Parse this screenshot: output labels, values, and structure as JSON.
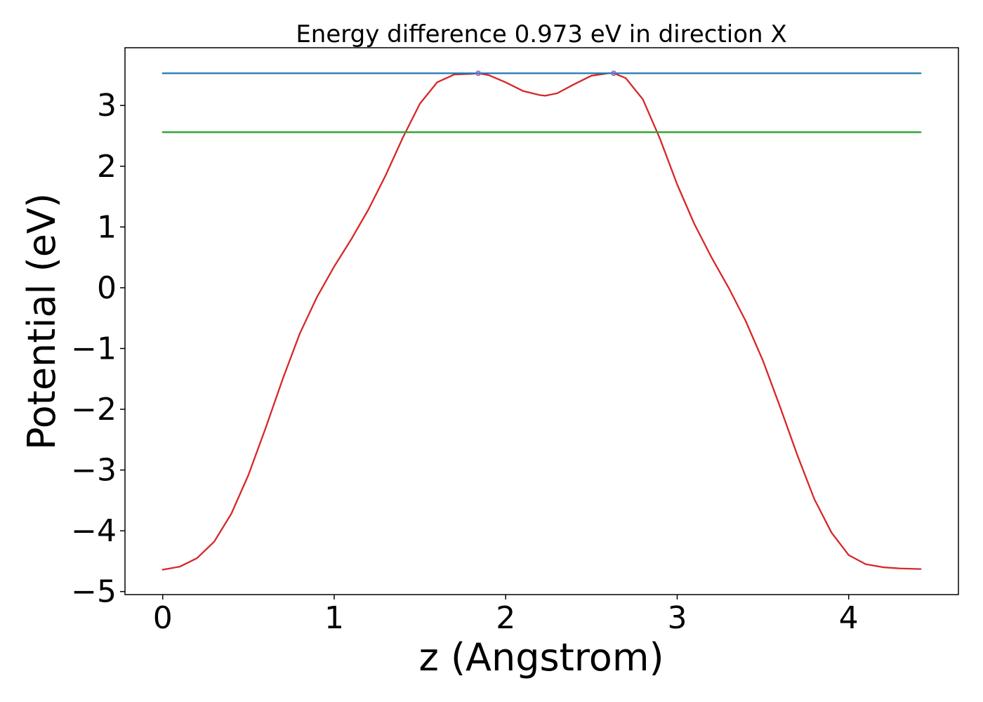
{
  "chart_data": {
    "type": "line",
    "title": "Energy difference 0.973 eV in direction X",
    "xlabel": "z (Angstrom)",
    "ylabel": "Potential (eV)",
    "xlim": [
      -0.22,
      4.64
    ],
    "ylim": [
      -5.05,
      3.95
    ],
    "xticks": [
      0,
      1,
      2,
      3,
      4
    ],
    "yticks": [
      -5,
      -4,
      -3,
      -2,
      -1,
      0,
      1,
      2,
      3
    ],
    "xtick_labels": [
      "0",
      "1",
      "2",
      "3",
      "4"
    ],
    "ytick_labels": [
      "−5",
      "−4",
      "−3",
      "−2",
      "−1",
      "0",
      "1",
      "2",
      "3"
    ],
    "grid": false,
    "legend": "none",
    "series": [
      {
        "color": "#d62728",
        "x": [
          0.0,
          0.1,
          0.2,
          0.3,
          0.4,
          0.5,
          0.6,
          0.7,
          0.8,
          0.9,
          1.0,
          1.1,
          1.2,
          1.3,
          1.4,
          1.5,
          1.6,
          1.7,
          1.8,
          1.84,
          1.9,
          2.0,
          2.1,
          2.2,
          2.23,
          2.3,
          2.4,
          2.5,
          2.6,
          2.63,
          2.7,
          2.8,
          2.9,
          3.0,
          3.1,
          3.2,
          3.3,
          3.4,
          3.5,
          3.6,
          3.7,
          3.8,
          3.9,
          4.0,
          4.1,
          4.2,
          4.3,
          4.42
        ],
        "y": [
          -4.64,
          -4.59,
          -4.45,
          -4.18,
          -3.72,
          -3.08,
          -2.31,
          -1.5,
          -0.75,
          -0.15,
          0.35,
          0.8,
          1.29,
          1.85,
          2.47,
          3.03,
          3.38,
          3.51,
          3.52,
          3.53,
          3.5,
          3.38,
          3.24,
          3.17,
          3.16,
          3.2,
          3.35,
          3.49,
          3.53,
          3.53,
          3.45,
          3.1,
          2.45,
          1.7,
          1.05,
          0.5,
          0.0,
          -0.55,
          -1.2,
          -1.96,
          -2.75,
          -3.48,
          -4.03,
          -4.4,
          -4.55,
          -4.6,
          -4.62,
          -4.63
        ]
      },
      {
        "color": "#1f77b4",
        "x": [
          0.0,
          4.42
        ],
        "y": [
          3.53,
          3.53
        ]
      },
      {
        "color": "#2ca02c",
        "x": [
          0.0,
          4.42
        ],
        "y": [
          2.56,
          2.56
        ]
      }
    ],
    "markers": [
      {
        "color": "#9467bd",
        "x": [
          1.84,
          2.63
        ],
        "y": [
          3.53,
          3.53
        ]
      }
    ]
  }
}
